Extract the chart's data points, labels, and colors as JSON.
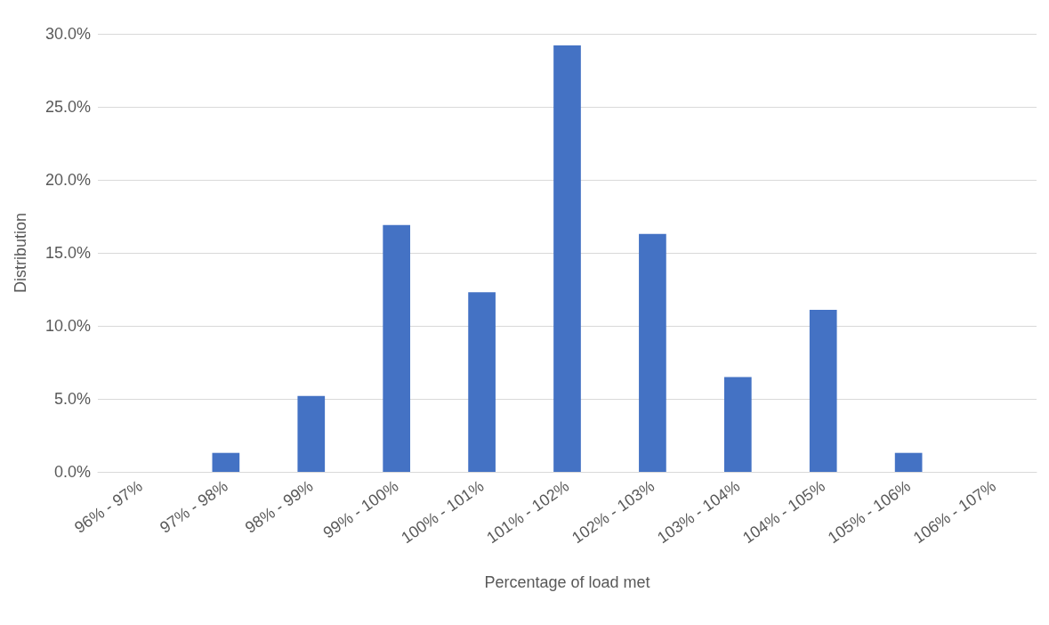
{
  "chart_data": {
    "type": "bar",
    "xlabel": "Percentage of load met",
    "ylabel": "Distribution",
    "categories": [
      "96% - 97%",
      "97% - 98%",
      "98% - 99%",
      "99% - 100%",
      "100% - 101%",
      "101% - 102%",
      "102% - 103%",
      "103% - 104%",
      "104% - 105%",
      "105% - 106%",
      "106% - 107%"
    ],
    "values": [
      0,
      1.3,
      5.2,
      16.9,
      12.3,
      29.2,
      16.3,
      6.5,
      11.1,
      1.3,
      0
    ],
    "color": "#4472c4",
    "ylim": [
      0,
      30
    ],
    "yticks": [
      {
        "value": 0,
        "label": "0.0%"
      },
      {
        "value": 5,
        "label": "5.0%"
      },
      {
        "value": 10,
        "label": "10.0%"
      },
      {
        "value": 15,
        "label": "15.0%"
      },
      {
        "value": 20,
        "label": "20.0%"
      },
      {
        "value": 25,
        "label": "25.0%"
      },
      {
        "value": 30,
        "label": "30.0%"
      }
    ],
    "grid": "y"
  }
}
